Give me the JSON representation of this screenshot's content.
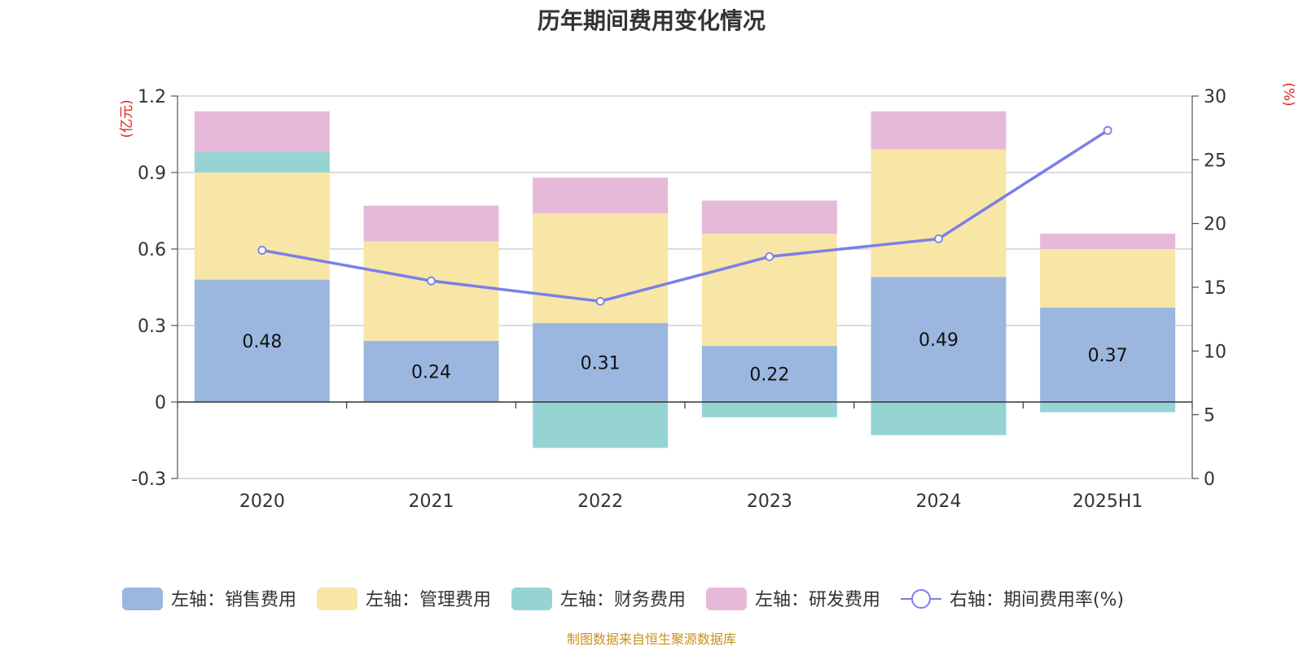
{
  "title": "历年期间费用变化情况",
  "source": "制图数据来自恒生聚源数据库",
  "chart_data": {
    "type": "bar",
    "stacked": true,
    "categories": [
      "2020",
      "2021",
      "2022",
      "2023",
      "2024",
      "2025H1"
    ],
    "left_axis": {
      "unit": "(亿元)",
      "ylim": [
        -0.3,
        1.2
      ],
      "ticks": [
        -0.3,
        0,
        0.3,
        0.6,
        0.9,
        1.2
      ],
      "tick_labels": [
        "-0.3",
        "0",
        "0.3",
        "0.6",
        "0.9",
        "1.2"
      ]
    },
    "right_axis": {
      "unit": "(%)",
      "ylim": [
        0,
        30
      ],
      "ticks": [
        0,
        5,
        10,
        15,
        20,
        25,
        30
      ],
      "tick_labels": [
        "0",
        "5",
        "10",
        "15",
        "20",
        "25",
        "30"
      ]
    },
    "series": [
      {
        "name": "左轴：销售费用",
        "type": "bar",
        "axis": "left",
        "color": "#9bb7e0",
        "values": [
          0.48,
          0.24,
          0.31,
          0.22,
          0.49,
          0.37
        ],
        "value_labels": [
          "0.48",
          "0.24",
          "0.31",
          "0.22",
          "0.49",
          "0.37"
        ]
      },
      {
        "name": "左轴：管理费用",
        "type": "bar",
        "axis": "left",
        "color": "#f7e6a6",
        "values": [
          0.42,
          0.39,
          0.43,
          0.44,
          0.5,
          0.23
        ]
      },
      {
        "name": "左轴：财务费用",
        "type": "bar",
        "axis": "left",
        "color": "#96d4d4",
        "values": [
          0.08,
          0.0,
          -0.18,
          -0.06,
          -0.13,
          -0.04
        ]
      },
      {
        "name": "左轴：研发费用",
        "type": "bar",
        "axis": "left",
        "color": "#e7b9d9",
        "values": [
          0.16,
          0.14,
          0.14,
          0.13,
          0.15,
          0.06
        ]
      },
      {
        "name": "右轴：期间费用率(%)",
        "type": "line",
        "axis": "right",
        "color": "#7b7fe8",
        "values": [
          17.9,
          15.5,
          13.9,
          17.4,
          18.8,
          27.3
        ]
      }
    ],
    "legend_position": "bottom-center",
    "grid": true
  }
}
